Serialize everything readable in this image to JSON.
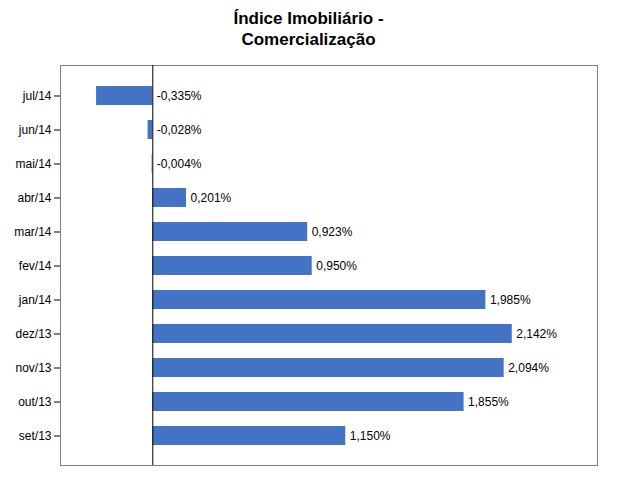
{
  "chart_data": {
    "type": "bar",
    "orientation": "horizontal",
    "title": "Índice Imobiliário -\nComercialização",
    "categories": [
      "set/13",
      "out/13",
      "nov/13",
      "dez/13",
      "jan/14",
      "fev/14",
      "mar/14",
      "abr/14",
      "mai/14",
      "jun/14",
      "jul/14"
    ],
    "values": [
      1.15,
      1.855,
      2.094,
      2.142,
      1.985,
      0.95,
      0.923,
      0.201,
      -0.004,
      -0.028,
      -0.335
    ],
    "value_labels": [
      "1,150%",
      "1,855%",
      "2,094%",
      "2,142%",
      "1,985%",
      "0,950%",
      "0,923%",
      "0,201%",
      "-0,004%",
      "-0,028%",
      "-0,335%"
    ],
    "color": "#4472C4",
    "xlim": [
      -0.55,
      2.65
    ],
    "data_labels": true,
    "tick_labels": "y",
    "grid": false
  }
}
